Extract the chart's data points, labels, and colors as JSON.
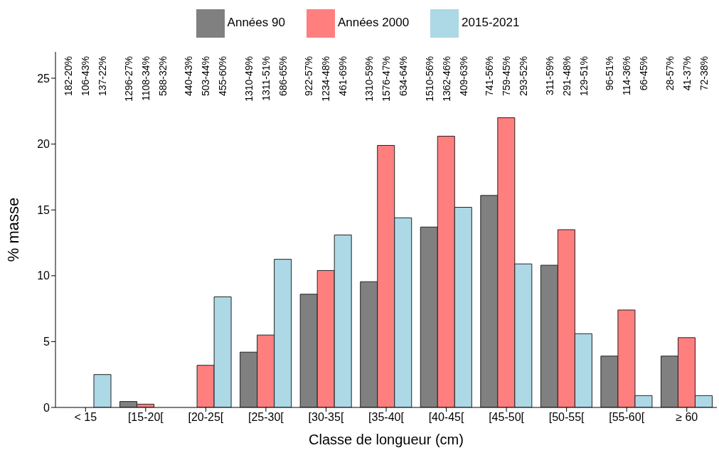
{
  "chart_data": {
    "type": "bar",
    "xlabel": "Classe de longueur (cm)",
    "ylabel": "% masse",
    "categories": [
      "< 15",
      "[15-20[",
      "[20-25[",
      "[25-30[",
      "[30-35[",
      "[35-40[",
      "[40-45[",
      "[45-50[",
      "[50-55[",
      "[55-60[",
      "≥ 60"
    ],
    "series": [
      {
        "name": "Années 90",
        "color": "#808080",
        "values": [
          0,
          0.45,
          0,
          4.2,
          8.6,
          9.55,
          13.7,
          16.1,
          10.8,
          3.9,
          3.9
        ]
      },
      {
        "name": "Années 2000",
        "color": "#ff7f7f",
        "values": [
          0,
          0.25,
          3.2,
          5.5,
          10.4,
          19.9,
          20.6,
          22.0,
          13.5,
          7.4,
          5.3
        ]
      },
      {
        "name": "2015-2021",
        "color": "#add8e6",
        "values": [
          2.5,
          0,
          8.4,
          11.25,
          13.1,
          14.4,
          15.2,
          10.9,
          5.6,
          0.9,
          0.9
        ]
      }
    ],
    "annotations": [
      "182-20%",
      "106-43%",
      "137-22%",
      "1296-27%",
      "1108-34%",
      "588-32%",
      "440-43%",
      "503-44%",
      "455-60%",
      "1310-49%",
      "1311-51%",
      "686-65%",
      "922-57%",
      "1234-48%",
      "461-69%",
      "1310-59%",
      "1576-47%",
      "634-64%",
      "1510-56%",
      "1362-46%",
      "409-63%",
      "741-56%",
      "759-45%",
      "293-52%",
      "311-59%",
      "291-48%",
      "129-51%",
      "96-51%",
      "114-36%",
      "66-45%",
      "28-57%",
      "41-37%",
      "72-38%"
    ],
    "ylim": [
      0,
      27
    ],
    "yticks": [
      0,
      5,
      10,
      15,
      20,
      25
    ],
    "grid": false,
    "legend": "top"
  }
}
